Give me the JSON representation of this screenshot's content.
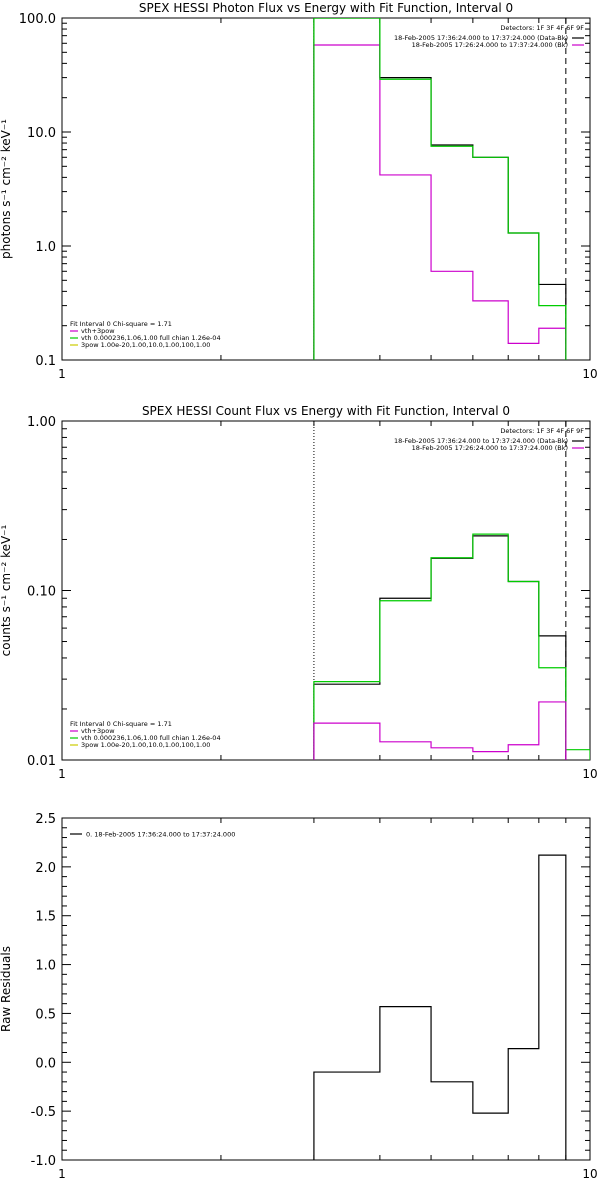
{
  "colors": {
    "total": "#000000",
    "bk": "#cc00cc",
    "model": "#00cc00",
    "apow": "#cccc00",
    "axes": "#000000"
  },
  "chart_data": [
    {
      "type": "line",
      "title": "SPEX HESSI Photon Flux vs Energy with Fit Function, Interval 0",
      "ylabel": "photons s⁻¹ cm⁻² keV⁻¹",
      "xlabel": "",
      "xscale": "log",
      "yscale": "log",
      "xlim": [
        1,
        10
      ],
      "ylim": [
        0.1,
        100
      ],
      "xticks": [
        "1",
        "10"
      ],
      "yticks": [
        "0.1",
        "1.0",
        "10.0",
        "100.0"
      ],
      "detectors": "Detectors: 1F 3F 4F 6F 9F",
      "legend": [
        {
          "text": "18-Feb-2005 17:36:24.000 to 17:37:24.000 (Data-Bk)",
          "color": "#000000"
        },
        {
          "text": "18-Feb-2005 17:26:24.000 to 17:37:24.000 (Bk)",
          "color": "#cc00cc"
        }
      ],
      "fit_legend_title": "Fit Interval 0   Chi-square = 1.71",
      "fit_legend": [
        {
          "text": "vth+3pow",
          "color": "#cc00cc"
        },
        {
          "text": "vth 0.000236,1.06,1.00   full chian 1.26e-04",
          "color": "#00cc00"
        },
        {
          "text": "3pow 1.00e-20,1.00,10.0,1.00,100,1.00",
          "color": "#cccc00"
        }
      ],
      "fit_range": [
        3,
        9
      ],
      "series": [
        {
          "name": "Data-Bk",
          "color": "#000000",
          "edges": [
            3,
            4,
            5,
            6,
            7,
            8,
            9
          ],
          "values": [
            100,
            30,
            7.7,
            6.0,
            1.3,
            0.46
          ]
        },
        {
          "name": "Bk",
          "color": "#cc00cc",
          "edges": [
            3,
            4,
            5,
            6,
            7,
            8,
            9
          ],
          "values": [
            58,
            4.2,
            0.6,
            0.33,
            0.14,
            0.19
          ]
        },
        {
          "name": "vth+3pow",
          "color": "#00cc00",
          "edges": [
            3,
            4,
            5,
            6,
            7,
            8,
            9
          ],
          "values": [
            100,
            29,
            7.5,
            6.0,
            1.3,
            0.3
          ]
        }
      ]
    },
    {
      "type": "line",
      "title": "SPEX HESSI Count Flux vs Energy with Fit Function, Interval 0",
      "ylabel": "counts s⁻¹ cm⁻² keV⁻¹",
      "xlabel": "",
      "xscale": "log",
      "yscale": "log",
      "xlim": [
        1,
        10
      ],
      "ylim": [
        0.01,
        1.0
      ],
      "xticks": [
        "1",
        "10"
      ],
      "yticks": [
        "0.01",
        "0.10",
        "1.00"
      ],
      "detectors": "Detectors: 1F 3F 4F 6F 9F",
      "legend": [
        {
          "text": "18-Feb-2005 17:36:24.000 to 17:37:24.000 (Data-Bk)",
          "color": "#000000"
        },
        {
          "text": "18-Feb-2005 17:26:24.000 to 17:37:24.000 (Bk)",
          "color": "#cc00cc"
        }
      ],
      "fit_legend_title": "Fit Interval 0   Chi-square = 1.71",
      "fit_legend": [
        {
          "text": "vth+3pow",
          "color": "#cc00cc"
        },
        {
          "text": "vth 0.000236,1.06,1.00   full chian 1.26e-04",
          "color": "#00cc00"
        },
        {
          "text": "3pow 1.00e-20,1.00,10.0,1.00,100,1.00",
          "color": "#cccc00"
        }
      ],
      "fit_range": [
        3,
        9
      ],
      "series": [
        {
          "name": "Data-Bk",
          "color": "#000000",
          "edges": [
            3,
            4,
            5,
            6,
            7,
            8,
            9
          ],
          "values": [
            0.028,
            0.09,
            0.155,
            0.21,
            0.113,
            0.054
          ]
        },
        {
          "name": "vth+3pow",
          "color": "#00cc00",
          "edges": [
            3,
            4,
            5,
            6,
            7,
            8,
            9,
            10
          ],
          "values": [
            0.029,
            0.087,
            0.156,
            0.215,
            0.113,
            0.035,
            0.0115
          ]
        },
        {
          "name": "Bk",
          "color": "#cc00cc",
          "edges": [
            3,
            4,
            5,
            6,
            7,
            8,
            9
          ],
          "values": [
            0.0165,
            0.0128,
            0.0118,
            0.0112,
            0.0123,
            0.022
          ]
        }
      ]
    },
    {
      "type": "line",
      "title": "",
      "ylabel": "Raw Residuals",
      "xlabel": "",
      "xscale": "log",
      "yscale": "linear",
      "xlim": [
        1,
        10
      ],
      "ylim": [
        -1.0,
        2.5
      ],
      "xticks": [
        "1",
        "10"
      ],
      "yticks": [
        "-1.0",
        "-0.5",
        "0.0",
        "0.5",
        "1.0",
        "1.5",
        "2.0",
        "2.5"
      ],
      "legend": [
        {
          "text": "0. 18-Feb-2005 17:36:24.000 to 17:37:24.000",
          "color": "#000000"
        }
      ],
      "series": [
        {
          "name": "residuals",
          "color": "#000000",
          "edges": [
            3,
            4,
            5,
            6,
            7,
            8,
            9
          ],
          "values": [
            -0.1,
            0.57,
            -0.2,
            -0.52,
            0.14,
            2.12
          ]
        }
      ]
    }
  ]
}
